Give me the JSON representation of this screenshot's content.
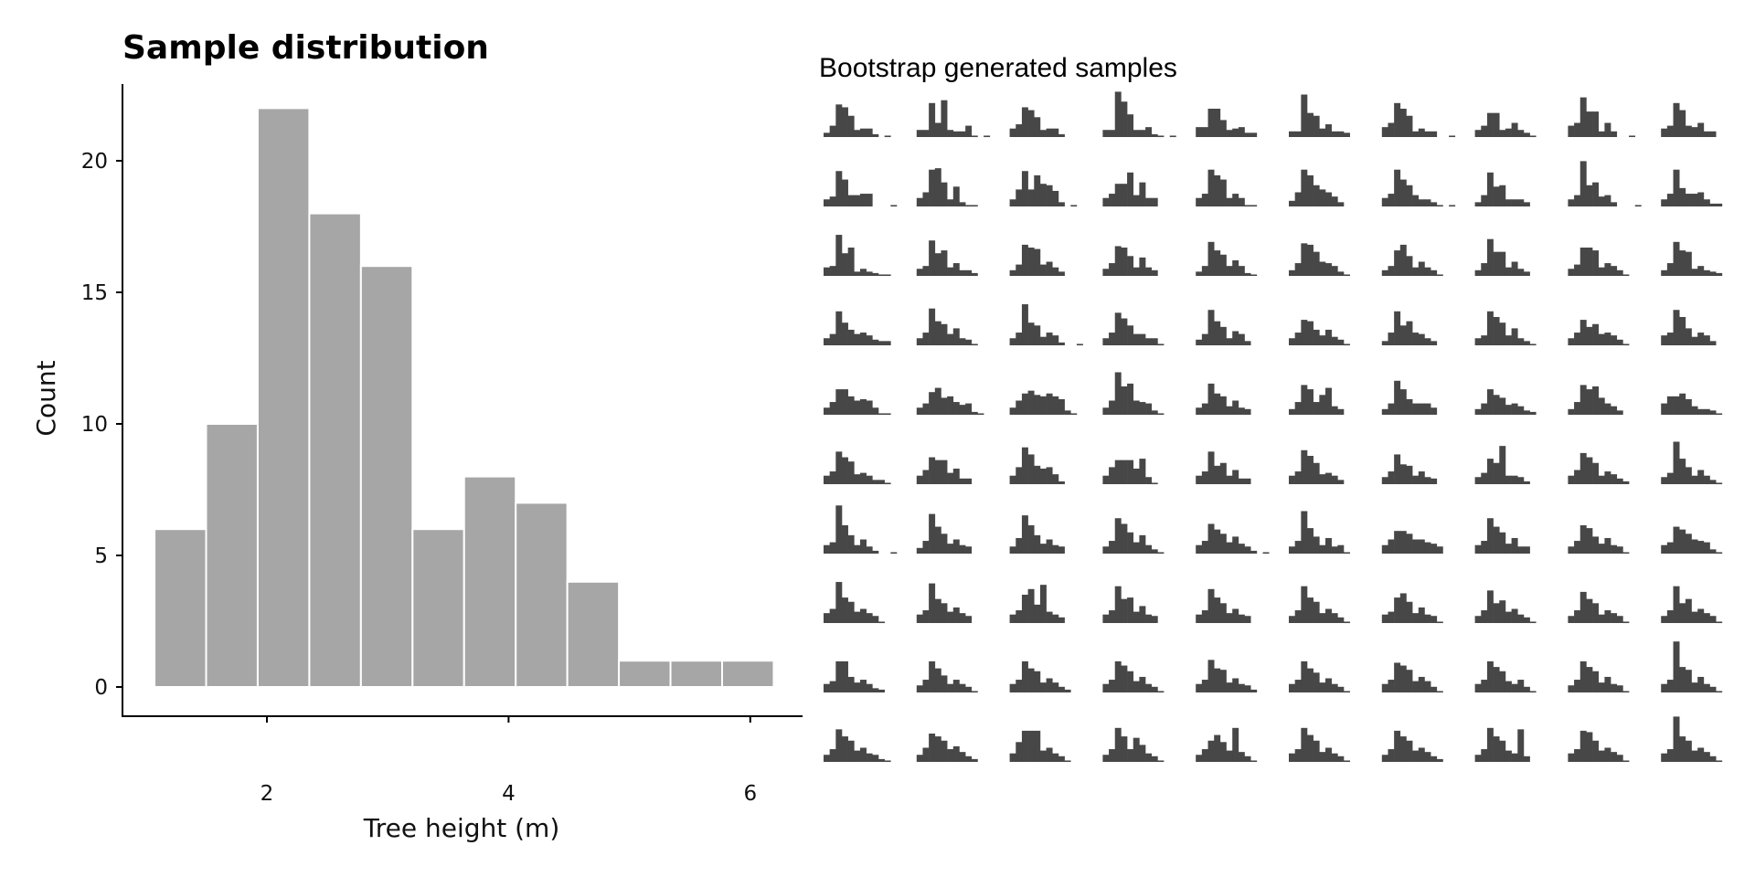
{
  "chart_data": [
    {
      "type": "bar",
      "title": "Sample distribution",
      "xlabel": "Tree height (m)",
      "ylabel": "Count",
      "bin_edges": [
        1.07,
        1.497,
        1.924,
        2.351,
        2.778,
        3.205,
        3.632,
        4.059,
        4.486,
        4.913,
        5.34,
        5.767,
        6.194
      ],
      "values": [
        6,
        10,
        22,
        18,
        16,
        6,
        8,
        7,
        4,
        1,
        1,
        1
      ],
      "xlim": [
        0.7,
        6.6
      ],
      "ylim": [
        -1.1,
        23
      ],
      "xticks": [
        2,
        4,
        6
      ],
      "xtick_labels": [
        "2",
        "4",
        "6"
      ],
      "yticks": [
        0,
        5,
        10,
        15,
        20
      ],
      "ytick_labels": [
        "0",
        "5",
        "10",
        "15",
        "20"
      ],
      "bar_color": "#a6a6a6",
      "grid": false
    },
    {
      "type": "bar",
      "title": "Bootstrap generated samples",
      "layout": "10x10 small multiples",
      "bar_color": "#474747",
      "bins": 12,
      "samples": [
        [
          3,
          8,
          23,
          21,
          15,
          5,
          6,
          6,
          2,
          0,
          1,
          0
        ],
        [
          5,
          5,
          24,
          10,
          26,
          5,
          4,
          4,
          8,
          1,
          0,
          1
        ],
        [
          6,
          9,
          21,
          19,
          14,
          5,
          6,
          6,
          2,
          0,
          0,
          0
        ],
        [
          5,
          5,
          32,
          25,
          16,
          5,
          5,
          7,
          2,
          1,
          0,
          1
        ],
        [
          7,
          7,
          20,
          20,
          12,
          5,
          6,
          7,
          3,
          3,
          0,
          0
        ],
        [
          4,
          4,
          30,
          17,
          15,
          6,
          9,
          4,
          4,
          3,
          0,
          0
        ],
        [
          7,
          10,
          24,
          20,
          15,
          4,
          6,
          4,
          4,
          0,
          0,
          1
        ],
        [
          5,
          8,
          17,
          17,
          5,
          6,
          10,
          5,
          3,
          1,
          0,
          0
        ],
        [
          8,
          10,
          28,
          18,
          18,
          4,
          10,
          4,
          0,
          0,
          1,
          0
        ],
        [
          6,
          8,
          24,
          19,
          8,
          7,
          10,
          4,
          4,
          0,
          0,
          0
        ],
        [
          5,
          7,
          25,
          19,
          8,
          8,
          9,
          9,
          0,
          0,
          0,
          1
        ],
        [
          6,
          10,
          26,
          27,
          17,
          5,
          14,
          3,
          1,
          1,
          0,
          0
        ],
        [
          5,
          12,
          25,
          12,
          22,
          16,
          15,
          11,
          3,
          0,
          1,
          0
        ],
        [
          6,
          9,
          16,
          16,
          24,
          8,
          17,
          6,
          6,
          0,
          0,
          0
        ],
        [
          6,
          9,
          26,
          22,
          19,
          6,
          9,
          6,
          1,
          1,
          0,
          0
        ],
        [
          4,
          10,
          26,
          22,
          15,
          12,
          10,
          7,
          3,
          0,
          0,
          0
        ],
        [
          6,
          9,
          26,
          19,
          15,
          8,
          5,
          5,
          3,
          1,
          0,
          1
        ],
        [
          3,
          8,
          24,
          14,
          15,
          5,
          5,
          5,
          3,
          0,
          0,
          0
        ],
        [
          5,
          8,
          32,
          15,
          17,
          7,
          8,
          3,
          0,
          0,
          0,
          1
        ],
        [
          5,
          9,
          26,
          13,
          9,
          9,
          10,
          5,
          2,
          2,
          0,
          0
        ],
        [
          6,
          7,
          29,
          16,
          20,
          3,
          5,
          3,
          2,
          1,
          1,
          0
        ],
        [
          5,
          7,
          25,
          16,
          18,
          6,
          9,
          4,
          4,
          2,
          0,
          0
        ],
        [
          4,
          8,
          22,
          20,
          19,
          8,
          10,
          6,
          3,
          0,
          0,
          0
        ],
        [
          5,
          9,
          21,
          20,
          14,
          6,
          13,
          6,
          4,
          0,
          0,
          0
        ],
        [
          3,
          7,
          24,
          18,
          15,
          7,
          11,
          7,
          2,
          1,
          0,
          0
        ],
        [
          4,
          9,
          23,
          22,
          17,
          10,
          9,
          7,
          3,
          1,
          0,
          0
        ],
        [
          4,
          7,
          18,
          22,
          14,
          6,
          10,
          6,
          4,
          1,
          0,
          0
        ],
        [
          4,
          9,
          26,
          17,
          17,
          6,
          10,
          5,
          3,
          0,
          0,
          0
        ],
        [
          5,
          8,
          20,
          20,
          18,
          6,
          9,
          7,
          4,
          1,
          0,
          0
        ],
        [
          4,
          9,
          24,
          18,
          17,
          5,
          7,
          4,
          3,
          2,
          0,
          0
        ],
        [
          5,
          8,
          24,
          16,
          11,
          8,
          9,
          7,
          4,
          3,
          3,
          0
        ],
        [
          5,
          9,
          26,
          17,
          15,
          8,
          12,
          5,
          4,
          1,
          0,
          0
        ],
        [
          5,
          9,
          29,
          16,
          14,
          6,
          9,
          7,
          2,
          0,
          0,
          1
        ],
        [
          5,
          9,
          23,
          19,
          14,
          8,
          8,
          5,
          5,
          1,
          0,
          0
        ],
        [
          4,
          8,
          25,
          17,
          13,
          5,
          10,
          8,
          3,
          0,
          0,
          0
        ],
        [
          5,
          9,
          18,
          17,
          11,
          7,
          11,
          6,
          4,
          1,
          0,
          0
        ],
        [
          3,
          9,
          24,
          14,
          17,
          9,
          8,
          5,
          3,
          0,
          0,
          0
        ],
        [
          5,
          7,
          24,
          20,
          16,
          7,
          12,
          5,
          3,
          1,
          0,
          0
        ],
        [
          5,
          9,
          18,
          13,
          15,
          8,
          9,
          7,
          4,
          1,
          0,
          0
        ],
        [
          7,
          9,
          25,
          20,
          12,
          6,
          9,
          7,
          3,
          0,
          0,
          0
        ],
        [
          5,
          9,
          18,
          18,
          13,
          10,
          11,
          10,
          5,
          1,
          1,
          0
        ],
        [
          5,
          8,
          16,
          19,
          12,
          13,
          9,
          7,
          8,
          2,
          1,
          0
        ],
        [
          5,
          10,
          15,
          17,
          14,
          13,
          15,
          13,
          11,
          3,
          1,
          0
        ],
        [
          5,
          10,
          30,
          20,
          22,
          10,
          9,
          8,
          3,
          1,
          0,
          0
        ],
        [
          5,
          8,
          22,
          15,
          13,
          6,
          10,
          5,
          4,
          0,
          0,
          0
        ],
        [
          4,
          9,
          21,
          18,
          9,
          14,
          19,
          6,
          4,
          0,
          0,
          0
        ],
        [
          4,
          8,
          24,
          18,
          11,
          8,
          8,
          8,
          5,
          0,
          0,
          0
        ],
        [
          4,
          8,
          18,
          14,
          12,
          7,
          8,
          6,
          3,
          2,
          0,
          0
        ],
        [
          4,
          9,
          21,
          18,
          20,
          12,
          8,
          6,
          3,
          0,
          0,
          0
        ],
        [
          8,
          13,
          13,
          15,
          11,
          6,
          4,
          4,
          3,
          1,
          0,
          0
        ],
        [
          6,
          9,
          23,
          19,
          16,
          7,
          8,
          6,
          3,
          3,
          1,
          0
        ],
        [
          6,
          10,
          19,
          17,
          17,
          8,
          11,
          4,
          4,
          0,
          0,
          0
        ],
        [
          6,
          12,
          26,
          21,
          13,
          11,
          12,
          7,
          2,
          0,
          0,
          0
        ],
        [
          6,
          12,
          17,
          17,
          17,
          11,
          18,
          5,
          1,
          0,
          0,
          0
        ],
        [
          6,
          9,
          23,
          13,
          15,
          6,
          10,
          4,
          4,
          0,
          0,
          0
        ],
        [
          6,
          9,
          24,
          20,
          15,
          7,
          8,
          6,
          3,
          0,
          0,
          0
        ],
        [
          5,
          9,
          21,
          14,
          13,
          6,
          9,
          5,
          4,
          0,
          0,
          0
        ],
        [
          5,
          8,
          18,
          15,
          27,
          6,
          6,
          5,
          2,
          0,
          0,
          0
        ],
        [
          6,
          10,
          22,
          19,
          15,
          6,
          9,
          7,
          4,
          2,
          0,
          0
        ],
        [
          5,
          8,
          30,
          18,
          12,
          6,
          10,
          6,
          3,
          1,
          0,
          0
        ],
        [
          6,
          8,
          34,
          20,
          13,
          6,
          10,
          5,
          2,
          0,
          0,
          1
        ],
        [
          4,
          9,
          28,
          19,
          14,
          7,
          10,
          6,
          5,
          0,
          0,
          0
        ],
        [
          5,
          11,
          27,
          20,
          13,
          7,
          10,
          6,
          5,
          0,
          0,
          0
        ],
        [
          5,
          9,
          25,
          21,
          15,
          8,
          13,
          6,
          3,
          1,
          0,
          0
        ],
        [
          6,
          9,
          21,
          17,
          14,
          8,
          12,
          7,
          5,
          2,
          0,
          1
        ],
        [
          5,
          9,
          30,
          18,
          12,
          6,
          11,
          5,
          6,
          1,
          0,
          0
        ],
        [
          6,
          10,
          16,
          16,
          14,
          10,
          10,
          8,
          7,
          5,
          0,
          0
        ],
        [
          6,
          9,
          25,
          19,
          15,
          7,
          11,
          5,
          5,
          0,
          0,
          0
        ],
        [
          5,
          9,
          20,
          18,
          12,
          7,
          11,
          6,
          5,
          1,
          0,
          0
        ],
        [
          6,
          8,
          19,
          17,
          14,
          10,
          9,
          8,
          3,
          1,
          0,
          0
        ],
        [
          7,
          10,
          29,
          18,
          15,
          8,
          10,
          7,
          5,
          1,
          0,
          0
        ],
        [
          6,
          9,
          28,
          17,
          14,
          8,
          11,
          7,
          5,
          0,
          0,
          0
        ],
        [
          6,
          9,
          20,
          24,
          13,
          27,
          8,
          6,
          4,
          0,
          0,
          0
        ],
        [
          6,
          9,
          26,
          17,
          18,
          8,
          12,
          6,
          5,
          0,
          0,
          0
        ],
        [
          6,
          9,
          24,
          18,
          14,
          7,
          10,
          6,
          5,
          0,
          0,
          0
        ],
        [
          5,
          9,
          26,
          18,
          15,
          7,
          10,
          7,
          4,
          1,
          0,
          0
        ],
        [
          6,
          8,
          18,
          21,
          15,
          7,
          11,
          6,
          5,
          1,
          0,
          0
        ],
        [
          5,
          9,
          23,
          14,
          16,
          8,
          10,
          6,
          4,
          1,
          0,
          0
        ],
        [
          5,
          9,
          22,
          17,
          14,
          6,
          9,
          7,
          5,
          1,
          0,
          0
        ],
        [
          5,
          9,
          26,
          14,
          17,
          8,
          10,
          7,
          5,
          1,
          0,
          0
        ],
        [
          6,
          8,
          22,
          22,
          11,
          7,
          9,
          6,
          3,
          2,
          0,
          0
        ],
        [
          5,
          9,
          22,
          17,
          12,
          6,
          9,
          6,
          4,
          1,
          0,
          0
        ],
        [
          6,
          9,
          22,
          17,
          15,
          7,
          10,
          7,
          4,
          2,
          0,
          0
        ],
        [
          6,
          9,
          22,
          19,
          15,
          8,
          11,
          6,
          4,
          1,
          0,
          0
        ],
        [
          6,
          9,
          23,
          17,
          16,
          7,
          10,
          6,
          5,
          2,
          0,
          0
        ],
        [
          6,
          9,
          22,
          17,
          14,
          7,
          10,
          6,
          4,
          1,
          0,
          0
        ],
        [
          6,
          9,
          21,
          19,
          16,
          8,
          11,
          8,
          4,
          1,
          0,
          0
        ],
        [
          6,
          9,
          22,
          18,
          15,
          8,
          6,
          9,
          4,
          1,
          0,
          0
        ],
        [
          5,
          9,
          22,
          18,
          15,
          7,
          11,
          6,
          5,
          1,
          0,
          0
        ],
        [
          6,
          9,
          36,
          18,
          16,
          7,
          11,
          6,
          4,
          1,
          0,
          0
        ],
        [
          5,
          9,
          23,
          18,
          15,
          8,
          10,
          6,
          5,
          2,
          1,
          0
        ],
        [
          5,
          10,
          20,
          18,
          15,
          9,
          11,
          7,
          4,
          2,
          0,
          0
        ],
        [
          6,
          14,
          22,
          22,
          22,
          8,
          10,
          6,
          4,
          1,
          0,
          0
        ],
        [
          5,
          9,
          24,
          18,
          9,
          17,
          12,
          6,
          4,
          1,
          0,
          0
        ],
        [
          5,
          9,
          15,
          19,
          14,
          8,
          24,
          7,
          4,
          1,
          0,
          0
        ],
        [
          6,
          9,
          24,
          19,
          15,
          7,
          10,
          6,
          4,
          1,
          0,
          0
        ],
        [
          5,
          9,
          22,
          18,
          15,
          8,
          10,
          7,
          4,
          2,
          0,
          0
        ],
        [
          5,
          9,
          24,
          18,
          15,
          8,
          6,
          23,
          4,
          0,
          0,
          0
        ],
        [
          6,
          9,
          22,
          21,
          15,
          8,
          10,
          7,
          5,
          1,
          0,
          0
        ],
        [
          6,
          9,
          32,
          18,
          15,
          8,
          10,
          7,
          4,
          1,
          0,
          0
        ]
      ]
    }
  ]
}
